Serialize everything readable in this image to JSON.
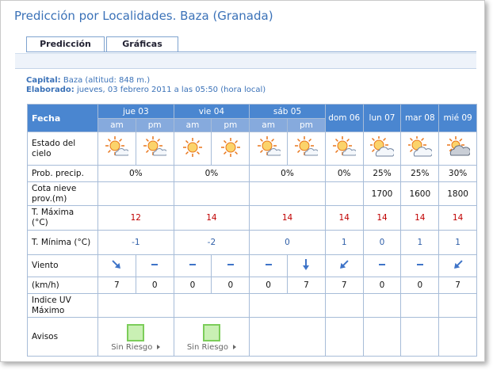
{
  "title": "Predicción por Localidades. Baza (Granada)",
  "tabs": [
    "Predicción",
    "Gráficas"
  ],
  "info": {
    "capital_label": "Capital:",
    "capital": "Baza (altitud: 848 m.)",
    "elaborado_label": "Elaborado:",
    "elaborado": "jueves, 03 febrero 2011 a las 05:50 (hora local)"
  },
  "table": {
    "header": "Fecha",
    "days": [
      "jue 03",
      "vie 04",
      "sáb 05",
      "dom 06",
      "lun 07",
      "mar 08",
      "mié 09"
    ],
    "periods": [
      "am",
      "pm",
      "am",
      "pm",
      "am",
      "pm"
    ],
    "rows": {
      "sky": {
        "label": "Estado del cielo"
      },
      "prob": {
        "label": "Prob. precip.",
        "values": [
          "0%",
          "0%",
          "0%",
          "0%",
          "25%",
          "25%",
          "30%"
        ]
      },
      "cota": {
        "label": "Cota nieve prov.(m)",
        "values": [
          null,
          null,
          null,
          null,
          1700,
          1600,
          1800
        ]
      },
      "tmax": {
        "label": "T. Máxima (°C)",
        "values": [
          12,
          14,
          14,
          14,
          14,
          14,
          14
        ]
      },
      "tmin": {
        "label": "T. Mínima (°C)",
        "values": [
          -1,
          -2,
          0,
          1,
          0,
          1,
          1
        ]
      },
      "viento": {
        "label": "Viento"
      },
      "kmh": {
        "label": "(km/h)",
        "values": [
          7,
          0,
          0,
          0,
          0,
          7,
          7,
          0,
          0,
          7
        ]
      },
      "uv": {
        "label": "Indice UV Máximo"
      },
      "avisos": {
        "label": "Avisos",
        "values": [
          "Sin Riesgo",
          "Sin Riesgo",
          null,
          null,
          null,
          null,
          null
        ]
      }
    }
  }
}
